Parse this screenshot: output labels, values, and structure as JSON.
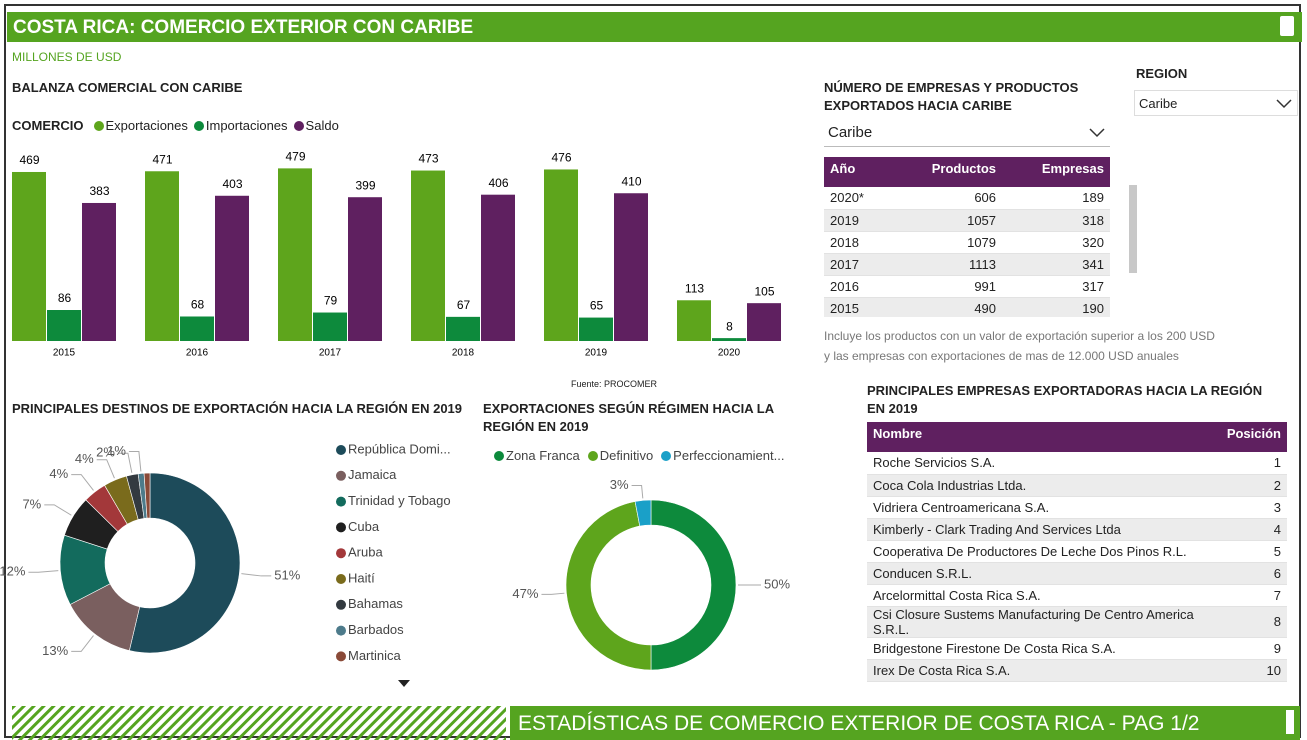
{
  "header": {
    "title": "COSTA RICA: COMERCIO EXTERIOR CON CARIBE",
    "subtitle": "MILLONES DE USD"
  },
  "chart_data": [
    {
      "type": "bar",
      "title": "BALANZA COMERCIAL CON CARIBE",
      "legend_title": "COMERCIO",
      "categories": [
        "2015",
        "2016",
        "2017",
        "2018",
        "2019",
        "2020"
      ],
      "series": [
        {
          "name": "Exportaciones",
          "color": "#5ea51c",
          "values": [
            469,
            471,
            479,
            473,
            476,
            113
          ]
        },
        {
          "name": "Importaciones",
          "color": "#0d8a3c",
          "values": [
            86,
            68,
            79,
            67,
            65,
            8
          ]
        },
        {
          "name": "Saldo",
          "color": "#5f2060",
          "values": [
            383,
            403,
            399,
            406,
            410,
            105
          ]
        }
      ],
      "ylim": [
        0,
        530
      ],
      "source": "Fuente: PROCOMER"
    },
    {
      "type": "donut",
      "title": "PRINCIPALES DESTINOS DE EXPORTACIÓN HACIA LA REGIÓN EN 2019",
      "categories": [
        "República Domi...",
        "Jamaica",
        "Trinidad y Tobago",
        "Cuba",
        "Aruba",
        "Haití",
        "Bahamas",
        "Barbados",
        "Martinica"
      ],
      "values": [
        51,
        13,
        12,
        7,
        4,
        4,
        2,
        1,
        1
      ],
      "value_labels": [
        "51%",
        "13%",
        "12%",
        "7%",
        "4%",
        "4%",
        "2%",
        "1%",
        null
      ],
      "colors": [
        "#1d4b5a",
        "#7a5f5f",
        "#136b5d",
        "#1f1f1f",
        "#a3383a",
        "#7a6b1c",
        "#333a40",
        "#4d7b8b",
        "#8a4a38"
      ]
    },
    {
      "type": "donut",
      "title": "EXPORTACIONES SEGÚN RÉGIMEN HACIA LA REGIÓN EN 2019",
      "categories": [
        "Zona Franca",
        "Definitivo",
        "Perfeccionamient..."
      ],
      "values": [
        50,
        47,
        3
      ],
      "value_labels": [
        "50%",
        "47%",
        "3%"
      ],
      "colors": [
        "#0d8a3c",
        "#5ea51c",
        "#1aa0c8"
      ]
    }
  ],
  "region_filter": {
    "label": "REGION",
    "value": "Caribe"
  },
  "companies_products": {
    "title": "NÚMERO DE EMPRESAS Y PRODUCTOS EXPORTADOS HACIA CARIBE",
    "dropdown": "Caribe",
    "columns": [
      "Año",
      "Productos",
      "Empresas"
    ],
    "rows": [
      [
        "2020*",
        "606",
        "189"
      ],
      [
        "2019",
        "1057",
        "318"
      ],
      [
        "2018",
        "1079",
        "320"
      ],
      [
        "2017",
        "1113",
        "341"
      ],
      [
        "2016",
        "991",
        "317"
      ],
      [
        "2015",
        "490",
        "190"
      ]
    ],
    "note": [
      "Incluye los productos con un valor de exportación superior a los 200 USD",
      "y las empresas con exportaciones de mas de 12.000 USD anuales"
    ]
  },
  "top_exporters": {
    "title": "PRINCIPALES EMPRESAS EXPORTADORAS HACIA LA REGIÓN EN 2019",
    "columns": [
      "Nombre",
      "Posición"
    ],
    "rows": [
      [
        "Roche Servicios S.A.",
        "1"
      ],
      [
        "Coca Cola Industrias Ltda.",
        "2"
      ],
      [
        "Vidriera Centroamericana S.A.",
        "3"
      ],
      [
        "Kimberly - Clark Trading And Services Ltda",
        "4"
      ],
      [
        "Cooperativa De Productores De Leche Dos Pinos R.L.",
        "5"
      ],
      [
        "Conducen S.R.L.",
        "6"
      ],
      [
        "Arcelormittal Costa Rica S.A.",
        "7"
      ],
      [
        "Csi Closure Sustems Manufacturing De Centro America S.R.L.",
        "8"
      ],
      [
        "Bridgestone Firestone De Costa Rica S.A.",
        "9"
      ],
      [
        "Irex De Costa Rica S.A.",
        "10"
      ]
    ]
  },
  "footer": {
    "text": "ESTADÍSTICAS DE COMERCIO EXTERIOR DE COSTA RICA - PAG 1/2"
  }
}
